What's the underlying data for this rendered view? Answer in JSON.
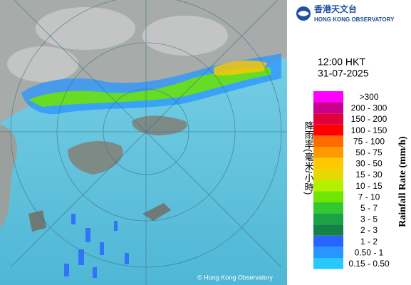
{
  "logo": {
    "chinese": "香港天文台",
    "english": "HONG KONG OBSERVATORY"
  },
  "time": "12:00 HKT",
  "date": "31-07-2025",
  "legend": {
    "title_chinese": "降雨率(毫米/小時)",
    "title_english": "Rainfall Rate (mm/h)",
    "items": [
      {
        "label": ">300",
        "color": "#ff00ff"
      },
      {
        "label": "200 - 300",
        "color": "#c8008c"
      },
      {
        "label": "150 - 200",
        "color": "#e0003c"
      },
      {
        "label": "100 - 150",
        "color": "#ff0000"
      },
      {
        "label": "75 - 100",
        "color": "#ff6a00"
      },
      {
        "label": "50 - 75",
        "color": "#ff9900"
      },
      {
        "label": "30 - 50",
        "color": "#ffc800"
      },
      {
        "label": "15 - 30",
        "color": "#e6d800"
      },
      {
        "label": "10 - 15",
        "color": "#b4f000"
      },
      {
        "label": "7 - 10",
        "color": "#6ee600"
      },
      {
        "label": "5 - 7",
        "color": "#32c832"
      },
      {
        "label": "3 - 5",
        "color": "#1ea046"
      },
      {
        "label": "2 - 3",
        "color": "#148246"
      },
      {
        "label": "1 - 2",
        "color": "#2864ff"
      },
      {
        "label": "0.50 - 1",
        "color": "#2896ff"
      },
      {
        "label": "0.15 - 0.50",
        "color": "#28c8ff"
      }
    ]
  },
  "copyright": "© Hong Kong Observatory"
}
